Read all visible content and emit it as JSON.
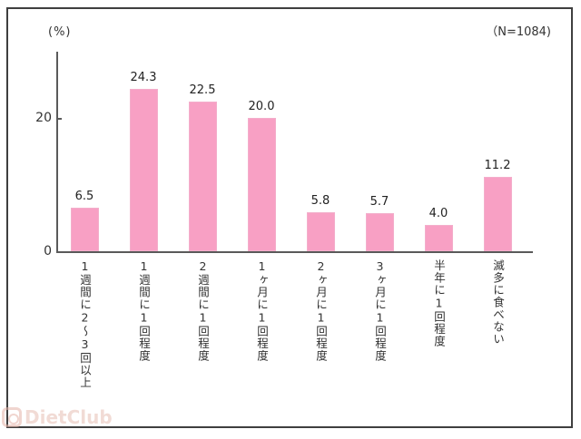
{
  "chart": {
    "unit_label": "(%)",
    "sample_label": "（N=1084)",
    "y_ticks": [
      {
        "value": 0,
        "label": "0"
      },
      {
        "value": 20,
        "label": "20"
      }
    ]
  },
  "chart_data": {
    "type": "bar",
    "title": "",
    "xlabel": "",
    "ylabel": "(%)",
    "annotation": "（N=1084)",
    "categories": [
      "1週間に2～3回以上",
      "1週間に1回程度",
      "2週間に1回程度",
      "1ヶ月に1回程度",
      "2ヶ月に1回程度",
      "3ヶ月に1回程度",
      "半年に1回程度",
      "滅多に食べない"
    ],
    "values": [
      6.5,
      24.3,
      22.5,
      20.0,
      5.8,
      5.7,
      4.0,
      11.2
    ],
    "value_labels": [
      "6.5",
      "24.3",
      "22.5",
      "20.0",
      "5.8",
      "5.7",
      "4.0",
      "11.2"
    ],
    "ylim": [
      0,
      30
    ],
    "y_tick_values": [
      0,
      20
    ],
    "grid": false,
    "legend_position": "none",
    "bar_color": "#F8A0C4",
    "category_orientation": "vertical"
  },
  "watermark": {
    "text": "DietClub"
  }
}
